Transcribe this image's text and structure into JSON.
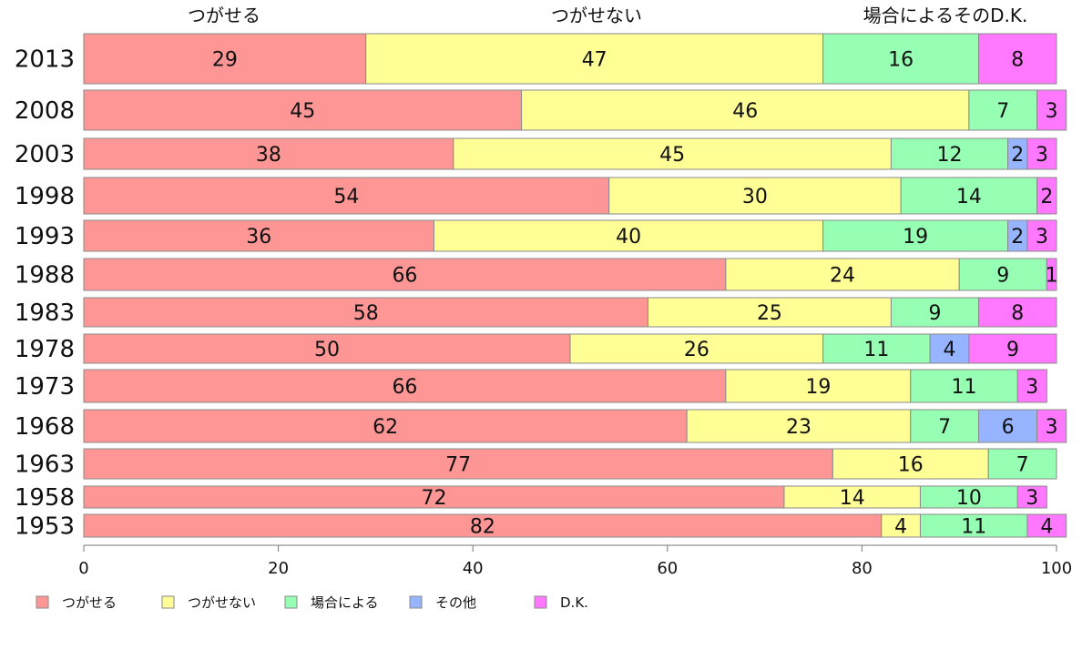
{
  "chart_data": {
    "type": "bar",
    "orientation": "horizontal",
    "stacked": true,
    "categories": [
      "2013",
      "2008",
      "2003",
      "1998",
      "1993",
      "1988",
      "1983",
      "1978",
      "1973",
      "1968",
      "1963",
      "1958",
      "1953"
    ],
    "series": [
      {
        "name": "つがせる",
        "color": "#ff9696",
        "values": [
          29,
          45,
          38,
          54,
          36,
          66,
          58,
          50,
          66,
          62,
          77,
          72,
          82
        ]
      },
      {
        "name": "つがせない",
        "color": "#ffff96",
        "values": [
          47,
          46,
          45,
          30,
          40,
          24,
          25,
          26,
          19,
          23,
          16,
          14,
          4
        ]
      },
      {
        "name": "場合による",
        "color": "#96ffb4",
        "values": [
          16,
          7,
          12,
          14,
          19,
          9,
          9,
          11,
          11,
          7,
          7,
          10,
          11
        ]
      },
      {
        "name": "その他",
        "color": "#96b4ff",
        "values": [
          0,
          0,
          2,
          0,
          2,
          0,
          0,
          4,
          0,
          6,
          0,
          0,
          0
        ]
      },
      {
        "name": "D.K.",
        "color": "#ff78ff",
        "values": [
          8,
          3,
          3,
          2,
          3,
          1,
          8,
          9,
          3,
          3,
          0,
          3,
          4
        ]
      }
    ],
    "top_labels": [
      "つがせる",
      "つがせない",
      "場合によるそのD.K."
    ],
    "xlim": [
      0,
      100
    ],
    "x_ticks": [
      0,
      20,
      40,
      60,
      80,
      100
    ],
    "legend_position": "bottom"
  }
}
